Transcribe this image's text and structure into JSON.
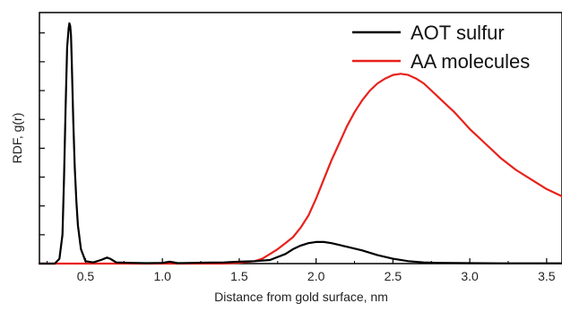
{
  "chart_data": {
    "type": "line",
    "xlabel": "Distance from gold surface, nm",
    "ylabel": "RDF, g(r)",
    "xlim": [
      0.2,
      3.6
    ],
    "ylim": [
      0,
      1.0
    ],
    "x_ticks": [
      0.5,
      1.0,
      1.5,
      2.0,
      2.5,
      3.0,
      3.5
    ],
    "x_tick_labels": [
      "0.5",
      "1.0",
      "1.5",
      "2.0",
      "2.5",
      "3.0",
      "3.5"
    ],
    "y_tick_values": [
      0.12,
      0.24,
      0.36,
      0.48,
      0.6,
      0.72,
      0.84,
      0.96
    ],
    "y_tick_labels_shown": false,
    "grid": false,
    "legend_position": "top-right",
    "series": [
      {
        "name": "AOT sulfur",
        "color": "#000000",
        "x": [
          0.2,
          0.3,
          0.33,
          0.35,
          0.36,
          0.37,
          0.38,
          0.39,
          0.395,
          0.4,
          0.405,
          0.41,
          0.42,
          0.43,
          0.44,
          0.45,
          0.47,
          0.5,
          0.55,
          0.6,
          0.64,
          0.66,
          0.7,
          0.8,
          0.9,
          1.0,
          1.05,
          1.1,
          1.2,
          1.3,
          1.4,
          1.5,
          1.6,
          1.7,
          1.8,
          1.85,
          1.9,
          1.95,
          2.0,
          2.05,
          2.1,
          2.2,
          2.3,
          2.4,
          2.5,
          2.6,
          2.7,
          2.8,
          3.0,
          3.2,
          3.4,
          3.6
        ],
        "y": [
          0.0,
          0.0,
          0.02,
          0.12,
          0.35,
          0.65,
          0.9,
          0.98,
          1.0,
          0.99,
          0.95,
          0.85,
          0.6,
          0.4,
          0.26,
          0.16,
          0.06,
          0.01,
          0.005,
          0.015,
          0.025,
          0.02,
          0.005,
          0.003,
          0.002,
          0.003,
          0.008,
          0.002,
          0.003,
          0.004,
          0.005,
          0.008,
          0.01,
          0.015,
          0.04,
          0.06,
          0.075,
          0.085,
          0.09,
          0.09,
          0.085,
          0.07,
          0.055,
          0.035,
          0.02,
          0.01,
          0.005,
          0.003,
          0.002,
          0.001,
          0.001,
          0.001
        ]
      },
      {
        "name": "AA molecules",
        "color": "#e8211c",
        "x": [
          0.2,
          0.5,
          1.0,
          1.4,
          1.5,
          1.6,
          1.65,
          1.7,
          1.75,
          1.8,
          1.85,
          1.9,
          1.95,
          2.0,
          2.05,
          2.1,
          2.15,
          2.2,
          2.25,
          2.3,
          2.35,
          2.4,
          2.45,
          2.5,
          2.55,
          2.6,
          2.65,
          2.7,
          2.75,
          2.8,
          2.9,
          3.0,
          3.1,
          3.2,
          3.3,
          3.4,
          3.5,
          3.6
        ],
        "y": [
          0.0,
          0.0,
          0.0,
          0.0,
          0.003,
          0.01,
          0.02,
          0.04,
          0.06,
          0.085,
          0.11,
          0.15,
          0.2,
          0.27,
          0.35,
          0.43,
          0.5,
          0.57,
          0.63,
          0.68,
          0.72,
          0.75,
          0.77,
          0.785,
          0.79,
          0.785,
          0.77,
          0.75,
          0.72,
          0.69,
          0.63,
          0.56,
          0.5,
          0.44,
          0.39,
          0.35,
          0.31,
          0.28
        ]
      }
    ]
  }
}
